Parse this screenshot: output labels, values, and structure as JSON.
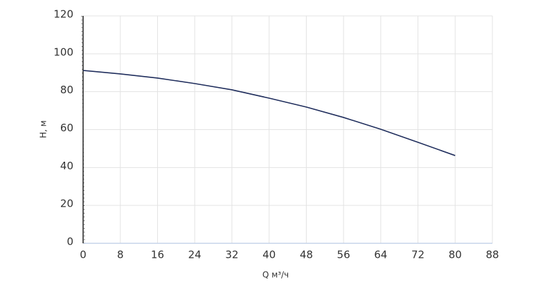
{
  "chart_data": {
    "type": "line",
    "x_label": "Q м³/ч",
    "y_label": "H, м",
    "x": [
      0,
      8,
      16,
      24,
      32,
      40,
      48,
      56,
      64,
      72,
      80
    ],
    "series": [
      {
        "name": "H",
        "color": "#1f2d5c",
        "values": [
          91.2,
          89.4,
          87.2,
          84.3,
          81,
          76.6,
          71.9,
          66.4,
          60.2,
          53.3,
          46.3
        ]
      }
    ],
    "xlim": [
      0,
      88
    ],
    "xticks": [
      0,
      8,
      16,
      24,
      32,
      40,
      48,
      56,
      64,
      72,
      80,
      88
    ],
    "ylim": [
      0,
      120
    ],
    "yticks": [
      0,
      20,
      40,
      60,
      80,
      100,
      120
    ],
    "grid": true
  }
}
